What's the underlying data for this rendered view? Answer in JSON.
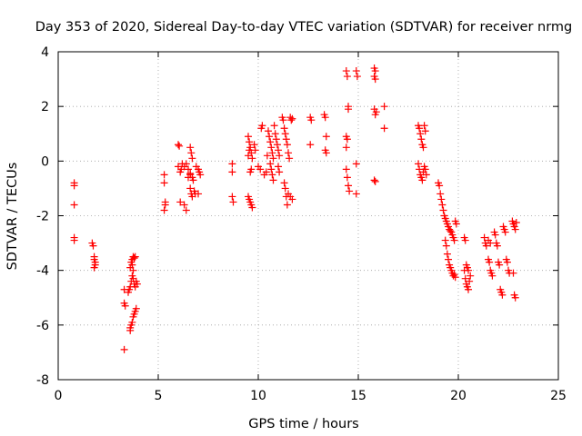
{
  "chart_data": {
    "type": "scatter",
    "title": "Day 353 of 2020, Sidereal Day-to-day VTEC variation (SDTVAR) for receiver nrmg",
    "xlabel": "GPS time / hours",
    "ylabel": "SDTVAR / TECUs",
    "xlim": [
      0,
      25
    ],
    "ylim": [
      -8,
      4
    ],
    "xticks": [
      0,
      5,
      10,
      15,
      20,
      25
    ],
    "yticks": [
      -8,
      -6,
      -4,
      -2,
      0,
      2,
      4
    ],
    "grid": true,
    "marker": "+",
    "color": "#ff0000",
    "series": [
      {
        "name": "nrmg",
        "points": [
          [
            0.8,
            -0.8
          ],
          [
            0.8,
            -0.9
          ],
          [
            0.8,
            -1.6
          ],
          [
            0.8,
            -2.8
          ],
          [
            0.8,
            -2.9
          ],
          [
            1.7,
            -3.0
          ],
          [
            1.75,
            -3.1
          ],
          [
            1.8,
            -3.5
          ],
          [
            1.8,
            -3.6
          ],
          [
            1.85,
            -3.7
          ],
          [
            1.8,
            -3.9
          ],
          [
            1.85,
            -3.8
          ],
          [
            3.3,
            -4.7
          ],
          [
            3.3,
            -5.2
          ],
          [
            3.35,
            -5.3
          ],
          [
            3.3,
            -6.9
          ],
          [
            3.5,
            -4.8
          ],
          [
            3.55,
            -4.7
          ],
          [
            3.6,
            -4.6
          ],
          [
            3.65,
            -4.4
          ],
          [
            3.6,
            -3.9
          ],
          [
            3.65,
            -3.7
          ],
          [
            3.7,
            -3.6
          ],
          [
            3.75,
            -3.5
          ],
          [
            3.8,
            -3.55
          ],
          [
            3.85,
            -3.5
          ],
          [
            3.7,
            -3.8
          ],
          [
            3.75,
            -4.0
          ],
          [
            3.7,
            -4.2
          ],
          [
            3.75,
            -4.3
          ],
          [
            3.8,
            -4.5
          ],
          [
            3.85,
            -4.6
          ],
          [
            3.9,
            -4.4
          ],
          [
            3.95,
            -4.5
          ],
          [
            3.6,
            -6.1
          ],
          [
            3.65,
            -6.0
          ],
          [
            3.7,
            -5.9
          ],
          [
            3.75,
            -5.7
          ],
          [
            3.8,
            -5.6
          ],
          [
            3.85,
            -5.5
          ],
          [
            3.9,
            -5.4
          ],
          [
            3.6,
            -6.2
          ],
          [
            5.3,
            -0.5
          ],
          [
            5.3,
            -0.8
          ],
          [
            5.35,
            -1.5
          ],
          [
            5.35,
            -1.6
          ],
          [
            5.3,
            -1.8
          ],
          [
            6.0,
            0.6
          ],
          [
            6.05,
            0.55
          ],
          [
            6.0,
            -0.2
          ],
          [
            6.1,
            -0.4
          ],
          [
            6.15,
            -0.3
          ],
          [
            6.2,
            -0.1
          ],
          [
            6.1,
            -1.5
          ],
          [
            6.3,
            -1.6
          ],
          [
            6.4,
            -1.8
          ],
          [
            6.3,
            -0.2
          ],
          [
            6.4,
            -0.1
          ],
          [
            6.5,
            -0.3
          ],
          [
            6.6,
            0.5
          ],
          [
            6.65,
            0.3
          ],
          [
            6.7,
            0.1
          ],
          [
            6.6,
            -0.5
          ],
          [
            6.7,
            -0.6
          ],
          [
            6.75,
            -0.7
          ],
          [
            6.6,
            -1.0
          ],
          [
            6.65,
            -1.2
          ],
          [
            6.7,
            -1.3
          ],
          [
            6.8,
            -1.1
          ],
          [
            6.85,
            -1.2
          ],
          [
            7.0,
            -1.2
          ],
          [
            7.0,
            -0.3
          ],
          [
            7.05,
            -0.4
          ],
          [
            7.1,
            -0.5
          ],
          [
            6.9,
            -0.2
          ],
          [
            6.5,
            -0.6
          ],
          [
            6.6,
            -0.45
          ],
          [
            8.7,
            -0.1
          ],
          [
            8.7,
            -0.4
          ],
          [
            8.7,
            -1.3
          ],
          [
            8.75,
            -1.5
          ],
          [
            9.5,
            0.9
          ],
          [
            9.55,
            0.7
          ],
          [
            9.6,
            0.5
          ],
          [
            9.65,
            0.3
          ],
          [
            9.7,
            0.1
          ],
          [
            9.5,
            0.2
          ],
          [
            9.55,
            0.4
          ],
          [
            9.6,
            -0.4
          ],
          [
            9.65,
            -0.3
          ],
          [
            9.5,
            -1.3
          ],
          [
            9.55,
            -1.4
          ],
          [
            9.6,
            -1.5
          ],
          [
            9.65,
            -1.6
          ],
          [
            9.7,
            -1.7
          ],
          [
            9.8,
            0.6
          ],
          [
            9.85,
            0.4
          ],
          [
            10.0,
            -0.2
          ],
          [
            10.1,
            -0.3
          ],
          [
            10.15,
            1.2
          ],
          [
            10.2,
            1.3
          ],
          [
            10.3,
            -0.5
          ],
          [
            10.4,
            -0.4
          ],
          [
            10.45,
            0.2
          ],
          [
            10.5,
            1.1
          ],
          [
            10.55,
            0.9
          ],
          [
            10.6,
            0.7
          ],
          [
            10.65,
            0.5
          ],
          [
            10.7,
            0.3
          ],
          [
            10.75,
            0.1
          ],
          [
            10.6,
            -0.1
          ],
          [
            10.65,
            -0.3
          ],
          [
            10.7,
            -0.5
          ],
          [
            10.75,
            -0.7
          ],
          [
            10.8,
            1.3
          ],
          [
            10.85,
            1.0
          ],
          [
            10.9,
            0.8
          ],
          [
            10.95,
            0.6
          ],
          [
            11.0,
            0.4
          ],
          [
            11.05,
            0.2
          ],
          [
            11.0,
            -0.2
          ],
          [
            11.05,
            -0.4
          ],
          [
            11.2,
            1.6
          ],
          [
            11.25,
            1.5
          ],
          [
            11.3,
            1.2
          ],
          [
            11.35,
            1.0
          ],
          [
            11.4,
            0.8
          ],
          [
            11.45,
            0.6
          ],
          [
            11.3,
            -0.8
          ],
          [
            11.35,
            -1.0
          ],
          [
            11.4,
            -1.3
          ],
          [
            11.45,
            -1.6
          ],
          [
            11.6,
            1.6
          ],
          [
            11.65,
            1.5
          ],
          [
            11.7,
            1.55
          ],
          [
            11.5,
            -1.2
          ],
          [
            11.6,
            -1.3
          ],
          [
            11.7,
            -1.4
          ],
          [
            11.5,
            0.3
          ],
          [
            11.55,
            0.1
          ],
          [
            12.6,
            1.6
          ],
          [
            12.65,
            1.5
          ],
          [
            12.6,
            0.6
          ],
          [
            13.3,
            1.7
          ],
          [
            13.35,
            1.6
          ],
          [
            13.4,
            0.9
          ],
          [
            13.35,
            0.4
          ],
          [
            13.4,
            0.3
          ],
          [
            14.4,
            3.3
          ],
          [
            14.45,
            3.1
          ],
          [
            14.5,
            2.0
          ],
          [
            14.5,
            1.9
          ],
          [
            14.4,
            0.9
          ],
          [
            14.45,
            0.8
          ],
          [
            14.4,
            0.5
          ],
          [
            14.4,
            -0.3
          ],
          [
            14.45,
            -0.6
          ],
          [
            14.5,
            -0.9
          ],
          [
            14.55,
            -1.1
          ],
          [
            14.9,
            3.3
          ],
          [
            14.95,
            3.1
          ],
          [
            14.9,
            -0.1
          ],
          [
            14.9,
            -1.2
          ],
          [
            15.8,
            3.4
          ],
          [
            15.85,
            3.3
          ],
          [
            15.8,
            3.1
          ],
          [
            15.85,
            3.0
          ],
          [
            15.8,
            1.9
          ],
          [
            15.85,
            1.7
          ],
          [
            15.9,
            1.8
          ],
          [
            15.8,
            -0.7
          ],
          [
            15.85,
            -0.75
          ],
          [
            16.3,
            2.0
          ],
          [
            16.3,
            1.2
          ],
          [
            18.0,
            1.3
          ],
          [
            18.05,
            1.2
          ],
          [
            18.1,
            1.0
          ],
          [
            18.15,
            0.8
          ],
          [
            18.2,
            0.6
          ],
          [
            18.25,
            0.5
          ],
          [
            18.3,
            1.3
          ],
          [
            18.35,
            1.1
          ],
          [
            18.0,
            -0.1
          ],
          [
            18.05,
            -0.3
          ],
          [
            18.1,
            -0.5
          ],
          [
            18.15,
            -0.6
          ],
          [
            18.2,
            -0.7
          ],
          [
            18.25,
            -0.4
          ],
          [
            18.3,
            -0.2
          ],
          [
            18.35,
            -0.3
          ],
          [
            18.4,
            -0.5
          ],
          [
            19.0,
            -0.8
          ],
          [
            19.05,
            -0.9
          ],
          [
            19.1,
            -1.2
          ],
          [
            19.15,
            -1.4
          ],
          [
            19.2,
            -1.6
          ],
          [
            19.25,
            -1.8
          ],
          [
            19.3,
            -2.0
          ],
          [
            19.35,
            -2.1
          ],
          [
            19.4,
            -2.2
          ],
          [
            19.45,
            -2.3
          ],
          [
            19.5,
            -2.4
          ],
          [
            19.55,
            -2.5
          ],
          [
            19.6,
            -2.55
          ],
          [
            19.65,
            -2.6
          ],
          [
            19.7,
            -2.7
          ],
          [
            19.75,
            -2.8
          ],
          [
            19.8,
            -2.9
          ],
          [
            19.85,
            -2.2
          ],
          [
            19.9,
            -2.3
          ],
          [
            19.35,
            -2.9
          ],
          [
            19.4,
            -3.1
          ],
          [
            19.45,
            -3.4
          ],
          [
            19.5,
            -3.6
          ],
          [
            19.55,
            -3.8
          ],
          [
            19.6,
            -3.9
          ],
          [
            19.65,
            -4.0
          ],
          [
            19.7,
            -4.1
          ],
          [
            19.75,
            -4.2
          ],
          [
            19.8,
            -4.15
          ],
          [
            19.85,
            -4.25
          ],
          [
            20.3,
            -2.8
          ],
          [
            20.35,
            -2.9
          ],
          [
            20.4,
            -3.8
          ],
          [
            20.45,
            -3.9
          ],
          [
            20.5,
            -4.0
          ],
          [
            20.35,
            -4.3
          ],
          [
            20.4,
            -4.5
          ],
          [
            20.45,
            -4.6
          ],
          [
            20.5,
            -4.7
          ],
          [
            20.55,
            -4.4
          ],
          [
            20.6,
            -4.2
          ],
          [
            20.3,
            -4.0
          ],
          [
            21.3,
            -2.8
          ],
          [
            21.35,
            -3.0
          ],
          [
            21.4,
            -3.1
          ],
          [
            21.5,
            -2.9
          ],
          [
            21.6,
            -3.0
          ],
          [
            21.5,
            -3.6
          ],
          [
            21.55,
            -3.7
          ],
          [
            21.6,
            -4.0
          ],
          [
            21.65,
            -4.1
          ],
          [
            21.7,
            -4.2
          ],
          [
            21.8,
            -2.6
          ],
          [
            21.85,
            -2.7
          ],
          [
            21.9,
            -3.0
          ],
          [
            21.95,
            -3.1
          ],
          [
            22.0,
            -3.7
          ],
          [
            22.05,
            -3.8
          ],
          [
            22.1,
            -4.7
          ],
          [
            22.15,
            -4.8
          ],
          [
            22.2,
            -4.9
          ],
          [
            22.25,
            -2.4
          ],
          [
            22.3,
            -2.5
          ],
          [
            22.35,
            -2.6
          ],
          [
            22.4,
            -3.6
          ],
          [
            22.45,
            -3.7
          ],
          [
            22.5,
            -4.0
          ],
          [
            22.55,
            -4.1
          ],
          [
            22.7,
            -2.2
          ],
          [
            22.75,
            -2.3
          ],
          [
            22.8,
            -2.4
          ],
          [
            22.85,
            -2.5
          ],
          [
            22.9,
            -2.25
          ],
          [
            22.75,
            -4.1
          ],
          [
            22.8,
            -4.9
          ],
          [
            22.85,
            -5.0
          ]
        ]
      }
    ]
  }
}
